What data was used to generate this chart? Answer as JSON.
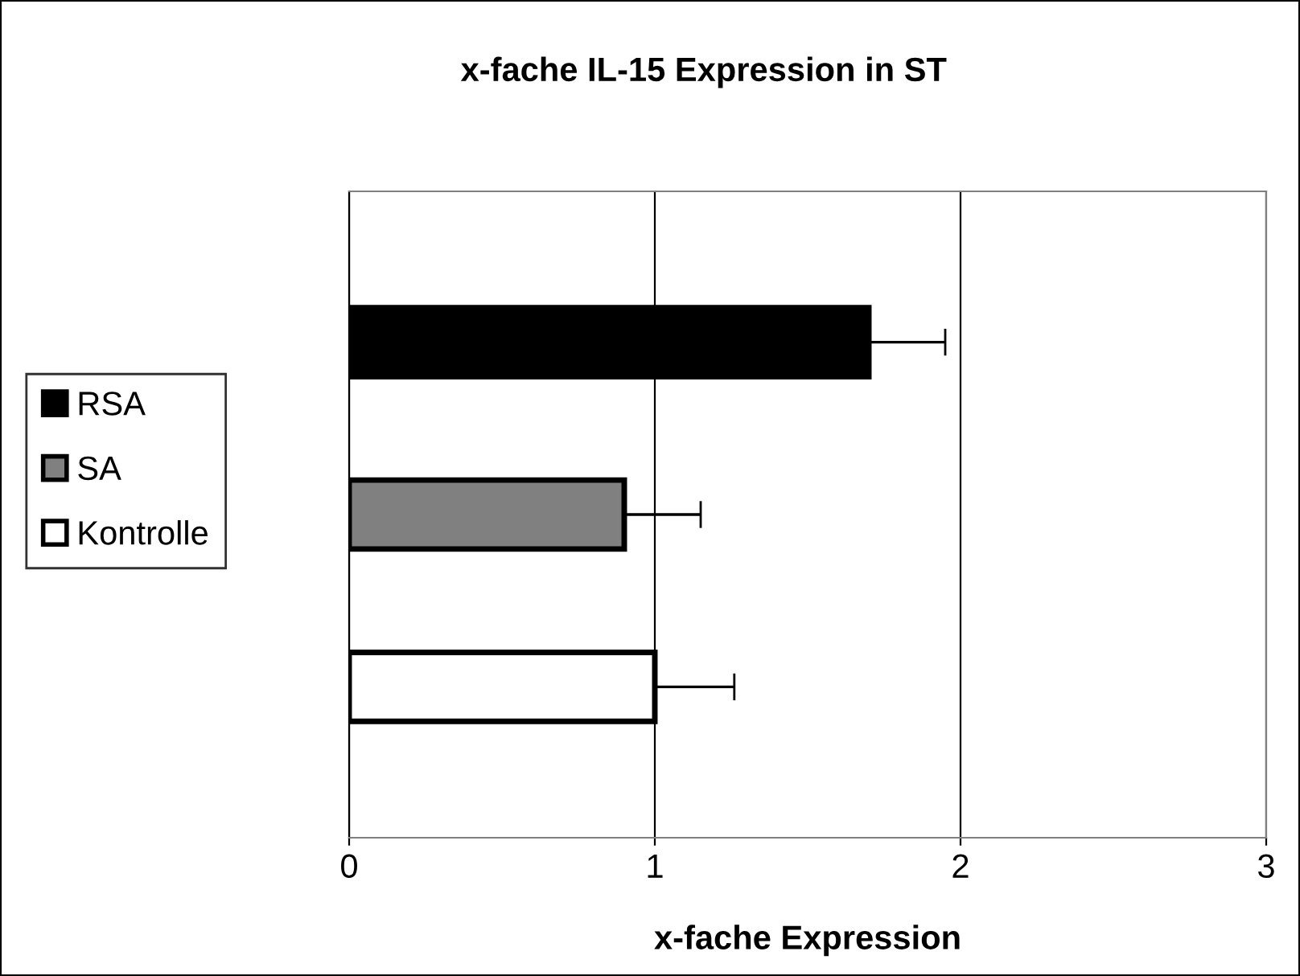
{
  "chart_data": {
    "type": "bar",
    "orientation": "horizontal",
    "title": "x-fache IL-15 Expression in ST",
    "xlabel": "x-fache Expression",
    "categories": [
      null
    ],
    "series": [
      {
        "name": "RSA",
        "color": "#000000",
        "values": [
          1.7
        ],
        "errors": [
          [
            1.7,
            1.95
          ]
        ]
      },
      {
        "name": "SA",
        "color": "#808080",
        "values": [
          0.9
        ],
        "errors": [
          [
            0.9,
            1.15
          ]
        ]
      },
      {
        "name": "Kontrolle",
        "color": "#ffffff",
        "values": [
          1.0
        ],
        "errors": [
          [
            1.0,
            1.26
          ]
        ]
      }
    ],
    "xlim": [
      0,
      3
    ],
    "xticks": [
      0,
      1,
      2,
      3
    ],
    "grid": "x",
    "legend": "left"
  }
}
